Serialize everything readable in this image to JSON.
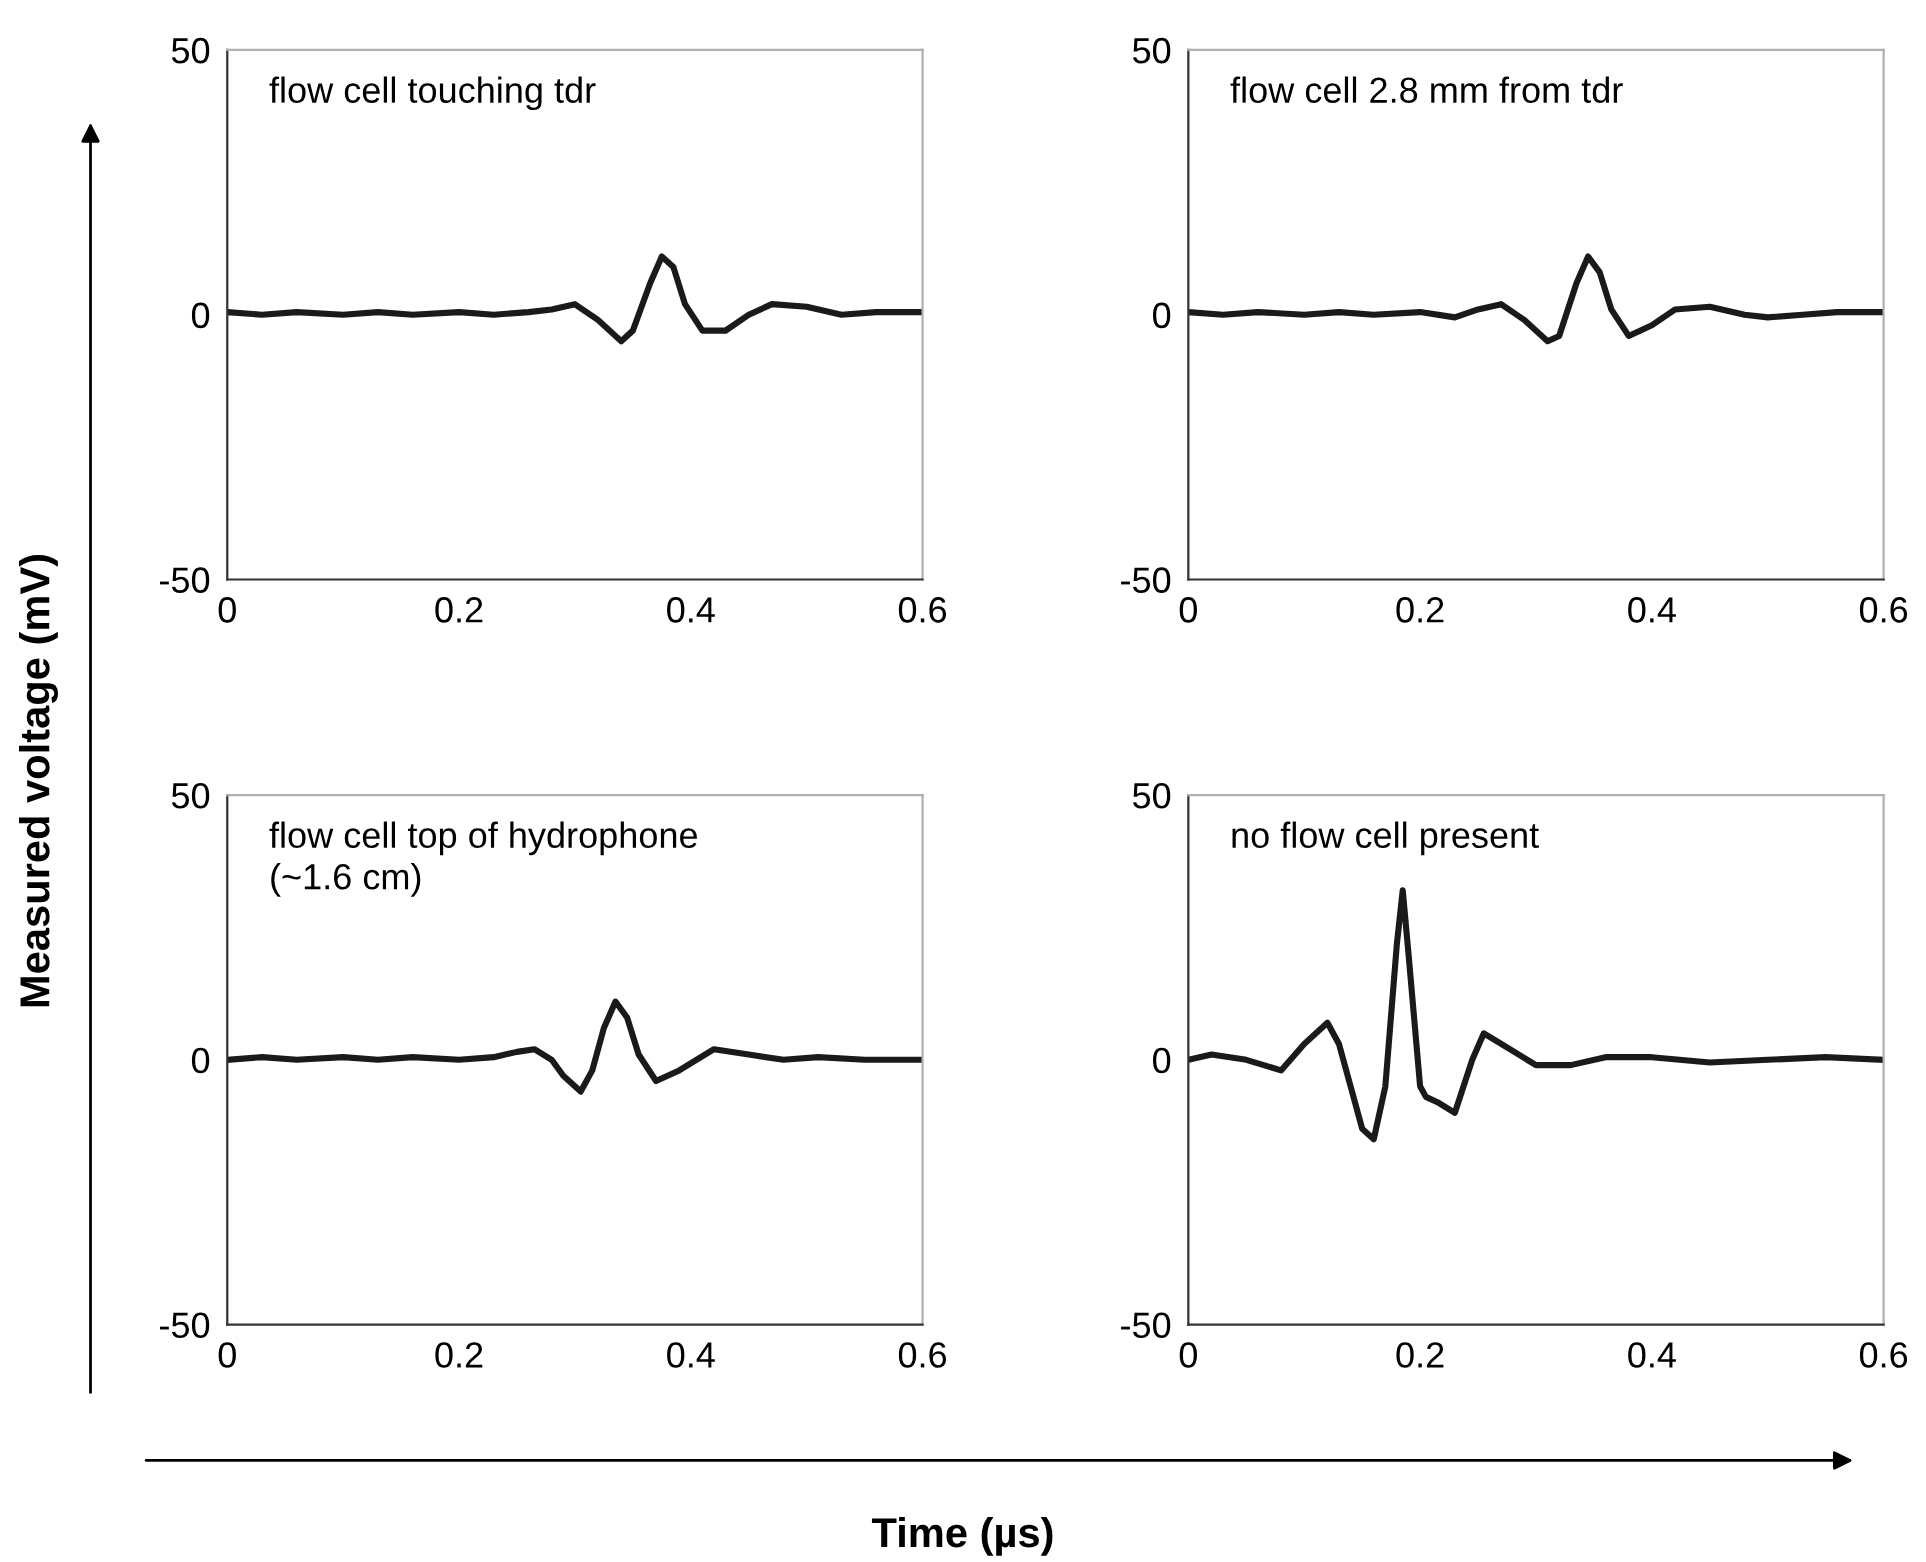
{
  "chart_data": [
    {
      "type": "line",
      "ylabel": "Measured voltage (mV)",
      "xlabel": "Time (µs)",
      "annotations": [
        "flow cell touching tdr"
      ],
      "xlim": [
        0,
        0.6
      ],
      "ylim": [
        -50,
        50
      ],
      "xticks": [
        0,
        0.2,
        0.4,
        0.6
      ],
      "yticks": [
        -50,
        0,
        50
      ],
      "grid": false,
      "legend": false,
      "series": [
        {
          "color": "#1a1a1a",
          "x": [
            0,
            0.03,
            0.06,
            0.1,
            0.13,
            0.16,
            0.2,
            0.23,
            0.26,
            0.28,
            0.3,
            0.32,
            0.34,
            0.35,
            0.365,
            0.375,
            0.385,
            0.395,
            0.41,
            0.43,
            0.45,
            0.47,
            0.5,
            0.53,
            0.56,
            0.6
          ],
          "values": [
            0.5,
            0,
            0.5,
            0,
            0.5,
            0,
            0.5,
            0,
            0.5,
            1,
            2,
            -1,
            -5,
            -3,
            6,
            11,
            9,
            2,
            -3,
            -3,
            0,
            2,
            1.5,
            0,
            0.5,
            0.5
          ]
        }
      ]
    },
    {
      "type": "line",
      "annotations": [
        "flow cell 2.8 mm from tdr"
      ],
      "xlim": [
        0,
        0.6
      ],
      "ylim": [
        -50,
        50
      ],
      "xticks": [
        0,
        0.2,
        0.4,
        0.6
      ],
      "yticks": [
        -50,
        0,
        50
      ],
      "grid": false,
      "legend": false,
      "series": [
        {
          "color": "#1a1a1a",
          "x": [
            0,
            0.03,
            0.06,
            0.1,
            0.13,
            0.16,
            0.2,
            0.23,
            0.25,
            0.27,
            0.29,
            0.31,
            0.32,
            0.335,
            0.345,
            0.355,
            0.365,
            0.38,
            0.4,
            0.42,
            0.45,
            0.48,
            0.5,
            0.53,
            0.56,
            0.6
          ],
          "values": [
            0.5,
            0,
            0.5,
            0,
            0.5,
            0,
            0.5,
            -0.5,
            1,
            2,
            -1,
            -5,
            -4,
            6,
            11,
            8,
            1,
            -4,
            -2,
            1,
            1.5,
            0,
            -0.5,
            0,
            0.5,
            0.5
          ]
        }
      ]
    },
    {
      "type": "line",
      "annotations": [
        "flow cell top of hydrophone\n(~1.6 cm)"
      ],
      "xlim": [
        0,
        0.6
      ],
      "ylim": [
        -50,
        50
      ],
      "xticks": [
        0,
        0.2,
        0.4,
        0.6
      ],
      "yticks": [
        -50,
        0,
        50
      ],
      "grid": false,
      "legend": false,
      "series": [
        {
          "color": "#1a1a1a",
          "x": [
            0,
            0.03,
            0.06,
            0.1,
            0.13,
            0.16,
            0.2,
            0.23,
            0.25,
            0.265,
            0.28,
            0.29,
            0.305,
            0.315,
            0.325,
            0.335,
            0.345,
            0.355,
            0.37,
            0.39,
            0.42,
            0.45,
            0.48,
            0.51,
            0.55,
            0.6
          ],
          "values": [
            0,
            0.5,
            0,
            0.5,
            0,
            0.5,
            0,
            0.5,
            1.5,
            2,
            0,
            -3,
            -6,
            -2,
            6,
            11,
            8,
            1,
            -4,
            -2,
            2,
            1,
            0,
            0.5,
            0,
            0
          ]
        }
      ]
    },
    {
      "type": "line",
      "annotations": [
        "no flow cell present"
      ],
      "xlim": [
        0,
        0.6
      ],
      "ylim": [
        -50,
        50
      ],
      "xticks": [
        0,
        0.2,
        0.4,
        0.6
      ],
      "yticks": [
        -50,
        0,
        50
      ],
      "grid": false,
      "legend": false,
      "series": [
        {
          "color": "#1a1a1a",
          "x": [
            0,
            0.02,
            0.05,
            0.08,
            0.1,
            0.12,
            0.13,
            0.14,
            0.15,
            0.16,
            0.17,
            0.18,
            0.185,
            0.19,
            0.2,
            0.205,
            0.215,
            0.23,
            0.245,
            0.255,
            0.27,
            0.3,
            0.33,
            0.36,
            0.4,
            0.45,
            0.5,
            0.55,
            0.6
          ],
          "values": [
            0,
            1,
            0,
            -2,
            3,
            7,
            3,
            -5,
            -13,
            -15,
            -5,
            22,
            32,
            20,
            -5,
            -7,
            -8,
            -10,
            0,
            5,
            3,
            -1,
            -1,
            0.5,
            0.5,
            -0.5,
            0,
            0.5,
            0
          ]
        }
      ]
    }
  ]
}
